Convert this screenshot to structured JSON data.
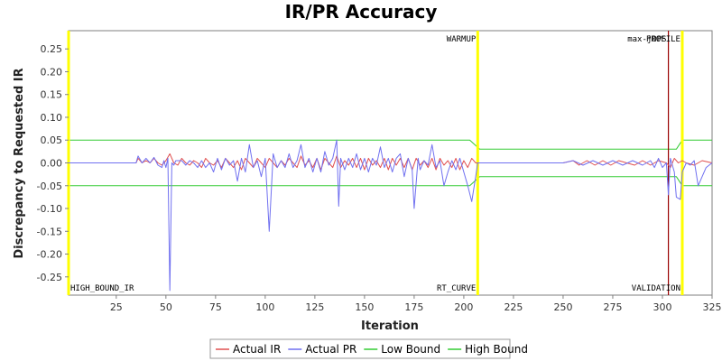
{
  "chart_data": {
    "type": "line",
    "title": "IR/PR Accuracy",
    "xlabel": "Iteration",
    "ylabel": "Discrepancy to Requested IR",
    "xlim": [
      1,
      325
    ],
    "ylim": [
      -0.29,
      0.29
    ],
    "x_ticks": [
      "25",
      "50",
      "75",
      "100",
      "125",
      "150",
      "175",
      "200",
      "225",
      "250",
      "275",
      "300",
      "325"
    ],
    "y_ticks": [
      "0.25",
      "0.20",
      "0.15",
      "0.10",
      "0.05",
      "0.00",
      "-0.05",
      "-0.10",
      "-0.15",
      "-0.20",
      "-0.25"
    ],
    "grid": false,
    "legend_position": "bottom",
    "series": [
      {
        "name": "Actual IR",
        "color": "#e05050",
        "points": [
          [
            1,
            0
          ],
          [
            20,
            0
          ],
          [
            35,
            0
          ],
          [
            36,
            0.01
          ],
          [
            38,
            0
          ],
          [
            40,
            0.005
          ],
          [
            42,
            0
          ],
          [
            44,
            0.01
          ],
          [
            46,
            0
          ],
          [
            48,
            -0.005
          ],
          [
            50,
            0.005
          ],
          [
            52,
            0.02
          ],
          [
            54,
            0
          ],
          [
            56,
            -0.005
          ],
          [
            58,
            0.01
          ],
          [
            60,
            0
          ],
          [
            62,
            -0.005
          ],
          [
            64,
            0.005
          ],
          [
            66,
            0
          ],
          [
            68,
            -0.01
          ],
          [
            70,
            0.01
          ],
          [
            72,
            0
          ],
          [
            74,
            -0.005
          ],
          [
            76,
            0.005
          ],
          [
            78,
            -0.01
          ],
          [
            80,
            0.01
          ],
          [
            82,
            0
          ],
          [
            84,
            -0.01
          ],
          [
            86,
            0.005
          ],
          [
            88,
            -0.015
          ],
          [
            90,
            0.01
          ],
          [
            92,
            0
          ],
          [
            94,
            -0.01
          ],
          [
            96,
            0.01
          ],
          [
            98,
            0
          ],
          [
            100,
            -0.01
          ],
          [
            102,
            0.01
          ],
          [
            104,
            0
          ],
          [
            106,
            -0.01
          ],
          [
            108,
            0.005
          ],
          [
            110,
            -0.005
          ],
          [
            112,
            0.01
          ],
          [
            114,
            0
          ],
          [
            116,
            -0.01
          ],
          [
            118,
            0.015
          ],
          [
            120,
            -0.005
          ],
          [
            122,
            0.005
          ],
          [
            124,
            -0.01
          ],
          [
            126,
            0.01
          ],
          [
            128,
            -0.015
          ],
          [
            130,
            0.01
          ],
          [
            132,
            0
          ],
          [
            134,
            -0.01
          ],
          [
            136,
            0.015
          ],
          [
            138,
            -0.01
          ],
          [
            140,
            0.005
          ],
          [
            142,
            -0.005
          ],
          [
            144,
            0.01
          ],
          [
            146,
            -0.01
          ],
          [
            148,
            0.01
          ],
          [
            150,
            -0.015
          ],
          [
            152,
            0.01
          ],
          [
            154,
            -0.005
          ],
          [
            156,
            0.005
          ],
          [
            158,
            -0.01
          ],
          [
            160,
            0.01
          ],
          [
            162,
            -0.015
          ],
          [
            164,
            0.01
          ],
          [
            166,
            -0.005
          ],
          [
            168,
            0.01
          ],
          [
            170,
            -0.01
          ],
          [
            172,
            0.01
          ],
          [
            174,
            -0.015
          ],
          [
            176,
            0.01
          ],
          [
            178,
            -0.005
          ],
          [
            180,
            0.005
          ],
          [
            182,
            -0.01
          ],
          [
            184,
            0.01
          ],
          [
            186,
            -0.015
          ],
          [
            188,
            0.01
          ],
          [
            190,
            -0.005
          ],
          [
            192,
            0.005
          ],
          [
            194,
            -0.01
          ],
          [
            196,
            0.01
          ],
          [
            198,
            -0.015
          ],
          [
            200,
            0.005
          ],
          [
            202,
            -0.01
          ],
          [
            204,
            0.01
          ],
          [
            206,
            0
          ],
          [
            208,
            0
          ],
          [
            230,
            0
          ],
          [
            250,
            0
          ],
          [
            255,
            0.005
          ],
          [
            258,
            -0.005
          ],
          [
            262,
            0.005
          ],
          [
            266,
            -0.005
          ],
          [
            270,
            0.005
          ],
          [
            274,
            -0.005
          ],
          [
            278,
            0.005
          ],
          [
            282,
            0
          ],
          [
            286,
            -0.005
          ],
          [
            290,
            0.005
          ],
          [
            294,
            -0.005
          ],
          [
            298,
            0.005
          ],
          [
            302,
            0
          ],
          [
            304,
            -0.01
          ],
          [
            306,
            0.01
          ],
          [
            308,
            0
          ],
          [
            310,
            0.005
          ],
          [
            312,
            0
          ],
          [
            316,
            -0.005
          ],
          [
            320,
            0.005
          ],
          [
            325,
            0
          ]
        ]
      },
      {
        "name": "Actual PR",
        "color": "#7070f0",
        "points": [
          [
            1,
            0
          ],
          [
            20,
            0
          ],
          [
            35,
            0
          ],
          [
            36,
            0.015
          ],
          [
            38,
            0
          ],
          [
            40,
            0.01
          ],
          [
            42,
            0
          ],
          [
            44,
            0.012
          ],
          [
            46,
            -0.005
          ],
          [
            48,
            -0.01
          ],
          [
            49,
            0.005
          ],
          [
            50,
            -0.01
          ],
          [
            51,
            0.01
          ],
          [
            52,
            -0.28
          ],
          [
            53,
            0
          ],
          [
            54,
            -0.005
          ],
          [
            55,
            0.005
          ],
          [
            58,
            0.005
          ],
          [
            60,
            -0.005
          ],
          [
            62,
            0.005
          ],
          [
            64,
            0
          ],
          [
            66,
            -0.01
          ],
          [
            68,
            0.005
          ],
          [
            70,
            -0.01
          ],
          [
            72,
            0
          ],
          [
            74,
            -0.02
          ],
          [
            76,
            0.01
          ],
          [
            78,
            -0.015
          ],
          [
            80,
            0.01
          ],
          [
            82,
            -0.005
          ],
          [
            84,
            0.005
          ],
          [
            86,
            -0.04
          ],
          [
            88,
            0.01
          ],
          [
            90,
            -0.02
          ],
          [
            92,
            0.04
          ],
          [
            94,
            -0.01
          ],
          [
            96,
            0.005
          ],
          [
            98,
            -0.03
          ],
          [
            100,
            0.01
          ],
          [
            102,
            -0.15
          ],
          [
            104,
            0.02
          ],
          [
            106,
            -0.01
          ],
          [
            108,
            0.005
          ],
          [
            110,
            -0.01
          ],
          [
            112,
            0.02
          ],
          [
            114,
            -0.01
          ],
          [
            116,
            0.005
          ],
          [
            118,
            0.04
          ],
          [
            120,
            -0.01
          ],
          [
            122,
            0.01
          ],
          [
            124,
            -0.02
          ],
          [
            126,
            0.01
          ],
          [
            128,
            -0.02
          ],
          [
            130,
            0.025
          ],
          [
            132,
            -0.005
          ],
          [
            134,
            0.01
          ],
          [
            136,
            0.05
          ],
          [
            137,
            -0.095
          ],
          [
            138,
            0.01
          ],
          [
            140,
            -0.015
          ],
          [
            142,
            0.01
          ],
          [
            144,
            -0.01
          ],
          [
            146,
            0.02
          ],
          [
            148,
            -0.015
          ],
          [
            150,
            0.01
          ],
          [
            152,
            -0.02
          ],
          [
            154,
            0.01
          ],
          [
            156,
            -0.005
          ],
          [
            158,
            0.035
          ],
          [
            160,
            -0.01
          ],
          [
            162,
            0.01
          ],
          [
            164,
            -0.02
          ],
          [
            166,
            0.01
          ],
          [
            168,
            0.02
          ],
          [
            170,
            -0.03
          ],
          [
            172,
            0.01
          ],
          [
            174,
            -0.015
          ],
          [
            175,
            -0.1
          ],
          [
            177,
            0.01
          ],
          [
            178,
            -0.015
          ],
          [
            180,
            0.005
          ],
          [
            182,
            -0.005
          ],
          [
            184,
            0.04
          ],
          [
            186,
            -0.01
          ],
          [
            188,
            0.005
          ],
          [
            190,
            -0.05
          ],
          [
            192,
            -0.02
          ],
          [
            194,
            0.005
          ],
          [
            196,
            -0.015
          ],
          [
            198,
            0.01
          ],
          [
            200,
            -0.02
          ],
          [
            202,
            -0.05
          ],
          [
            204,
            -0.085
          ],
          [
            206,
            -0.03
          ],
          [
            207,
            0
          ],
          [
            208,
            0
          ],
          [
            230,
            0
          ],
          [
            250,
            0
          ],
          [
            255,
            0.005
          ],
          [
            260,
            -0.005
          ],
          [
            265,
            0.005
          ],
          [
            270,
            -0.005
          ],
          [
            275,
            0.005
          ],
          [
            280,
            -0.005
          ],
          [
            285,
            0.005
          ],
          [
            290,
            -0.005
          ],
          [
            294,
            0.005
          ],
          [
            296,
            -0.01
          ],
          [
            298,
            0.01
          ],
          [
            300,
            -0.01
          ],
          [
            302,
            0
          ],
          [
            303,
            -0.07
          ],
          [
            304,
            0.01
          ],
          [
            306,
            -0.02
          ],
          [
            307,
            -0.075
          ],
          [
            309,
            -0.08
          ],
          [
            310,
            -0.02
          ],
          [
            312,
            0
          ],
          [
            314,
            -0.005
          ],
          [
            316,
            0.005
          ],
          [
            318,
            -0.05
          ],
          [
            320,
            -0.03
          ],
          [
            322,
            -0.01
          ],
          [
            325,
            0
          ]
        ]
      },
      {
        "name": "Low Bound",
        "color": "#33cc33",
        "points": [
          [
            1,
            -0.05
          ],
          [
            203,
            -0.05
          ],
          [
            208,
            -0.03
          ],
          [
            307,
            -0.03
          ],
          [
            310,
            -0.05
          ],
          [
            325,
            -0.05
          ]
        ]
      },
      {
        "name": "High Bound",
        "color": "#33cc33",
        "points": [
          [
            1,
            0.05
          ],
          [
            203,
            0.05
          ],
          [
            208,
            0.03
          ],
          [
            307,
            0.03
          ],
          [
            310,
            0.05
          ],
          [
            325,
            0.05
          ]
        ]
      }
    ],
    "markers": [
      {
        "x": 1,
        "color": "#ffff00",
        "top_label": "",
        "bottom_label": "HIGH_BOUND_IR"
      },
      {
        "x": 207,
        "color": "#ffff00",
        "top_label": "WARMUP",
        "bottom_label": "RT_CURVE"
      },
      {
        "x": 303,
        "color": "#990000",
        "top_label": "max-jOPS",
        "bottom_label": ""
      },
      {
        "x": 310,
        "color": "#ffff00",
        "top_label": "PROFILE",
        "bottom_label": "VALIDATION"
      }
    ],
    "legend": [
      {
        "label": "Actual IR",
        "color": "#e05050"
      },
      {
        "label": "Actual PR",
        "color": "#7070f0"
      },
      {
        "label": "Low Bound",
        "color": "#33cc33"
      },
      {
        "label": "High Bound",
        "color": "#33cc33"
      }
    ]
  }
}
